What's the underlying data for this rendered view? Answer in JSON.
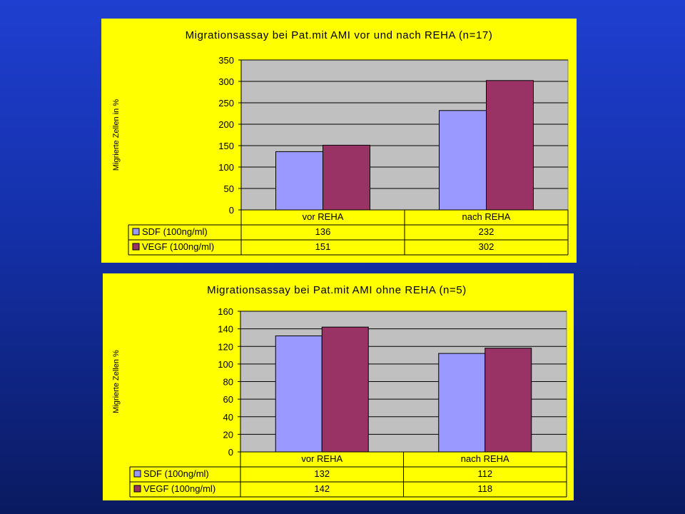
{
  "colors": {
    "sdf": "#9999ff",
    "vegf": "#993366",
    "plot_bg": "#c0c0c0",
    "panel_bg": "#ffff00"
  },
  "chart_data": [
    {
      "type": "bar",
      "title": "Migrationsassay bei Pat.mit AMI vor und nach REHA (n=17)",
      "ylabel": "Migrierte Zellen in %",
      "xlabel": "",
      "ylim": [
        0,
        350
      ],
      "yticks": [
        0,
        50,
        100,
        150,
        200,
        250,
        300,
        350
      ],
      "grid": true,
      "legend": "data-table",
      "categories": [
        "vor REHA",
        "nach REHA"
      ],
      "series": [
        {
          "name": "SDF (100ng/ml)",
          "values": [
            136,
            232
          ]
        },
        {
          "name": "VEGF (100ng/ml)",
          "values": [
            151,
            302
          ]
        }
      ]
    },
    {
      "type": "bar",
      "title": "Migrationsassay bei Pat.mit AMI ohne REHA (n=5)",
      "ylabel": "Migrierte Zellen %",
      "xlabel": "",
      "ylim": [
        0,
        160
      ],
      "yticks": [
        0,
        20,
        40,
        60,
        80,
        100,
        120,
        140,
        160
      ],
      "grid": true,
      "legend": "data-table",
      "categories": [
        "vor REHA",
        "nach REHA"
      ],
      "series": [
        {
          "name": "SDF (100ng/ml)",
          "values": [
            132,
            112
          ]
        },
        {
          "name": "VEGF (100ng/ml)",
          "values": [
            142,
            118
          ]
        }
      ]
    }
  ]
}
